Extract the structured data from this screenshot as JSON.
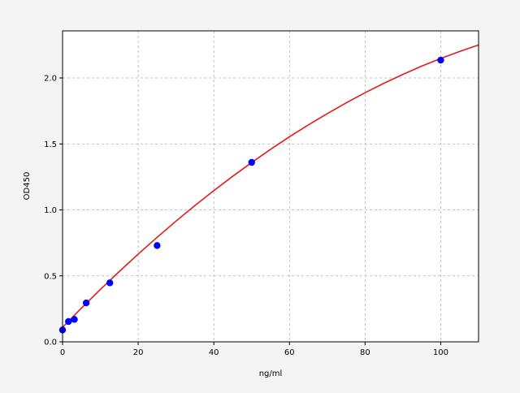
{
  "chart_data": {
    "type": "scatter",
    "title": "",
    "xlabel": "ng/ml",
    "ylabel": "OD450",
    "xlim": [
      0,
      110
    ],
    "ylim": [
      0,
      2.357
    ],
    "xticks": [
      0,
      20,
      40,
      60,
      80,
      100
    ],
    "xtick_labels": [
      "0",
      "20",
      "40",
      "60",
      "80",
      "100"
    ],
    "yticks": [
      0,
      0.5,
      1.0,
      1.5,
      2.0
    ],
    "ytick_labels": [
      "0.0",
      "0.5",
      "1.0",
      "1.5",
      "2.0"
    ],
    "grid": true,
    "colors": {
      "points": "#0000ff",
      "curve": "#e31a1c",
      "background": "#f4f4f4",
      "grid": "#b0b0b0"
    },
    "series": [
      {
        "kind": "points",
        "x": [
          0,
          1.56,
          3.125,
          6.25,
          12.5,
          25,
          50,
          100
        ],
        "y": [
          0.09,
          0.154,
          0.17,
          0.295,
          0.447,
          0.73,
          1.36,
          2.135
        ]
      },
      {
        "kind": "fit-curve",
        "x": [
          0,
          5,
          10,
          15,
          20,
          25,
          30,
          35,
          40,
          45,
          50,
          55,
          60,
          65,
          70,
          75,
          80,
          85,
          90,
          95,
          100,
          105,
          110
        ],
        "y": [
          0.11,
          0.256,
          0.397,
          0.533,
          0.665,
          0.792,
          0.915,
          1.033,
          1.146,
          1.255,
          1.359,
          1.459,
          1.554,
          1.644,
          1.73,
          1.811,
          1.888,
          1.96,
          2.027,
          2.09,
          2.148,
          2.201,
          2.25
        ]
      }
    ]
  }
}
